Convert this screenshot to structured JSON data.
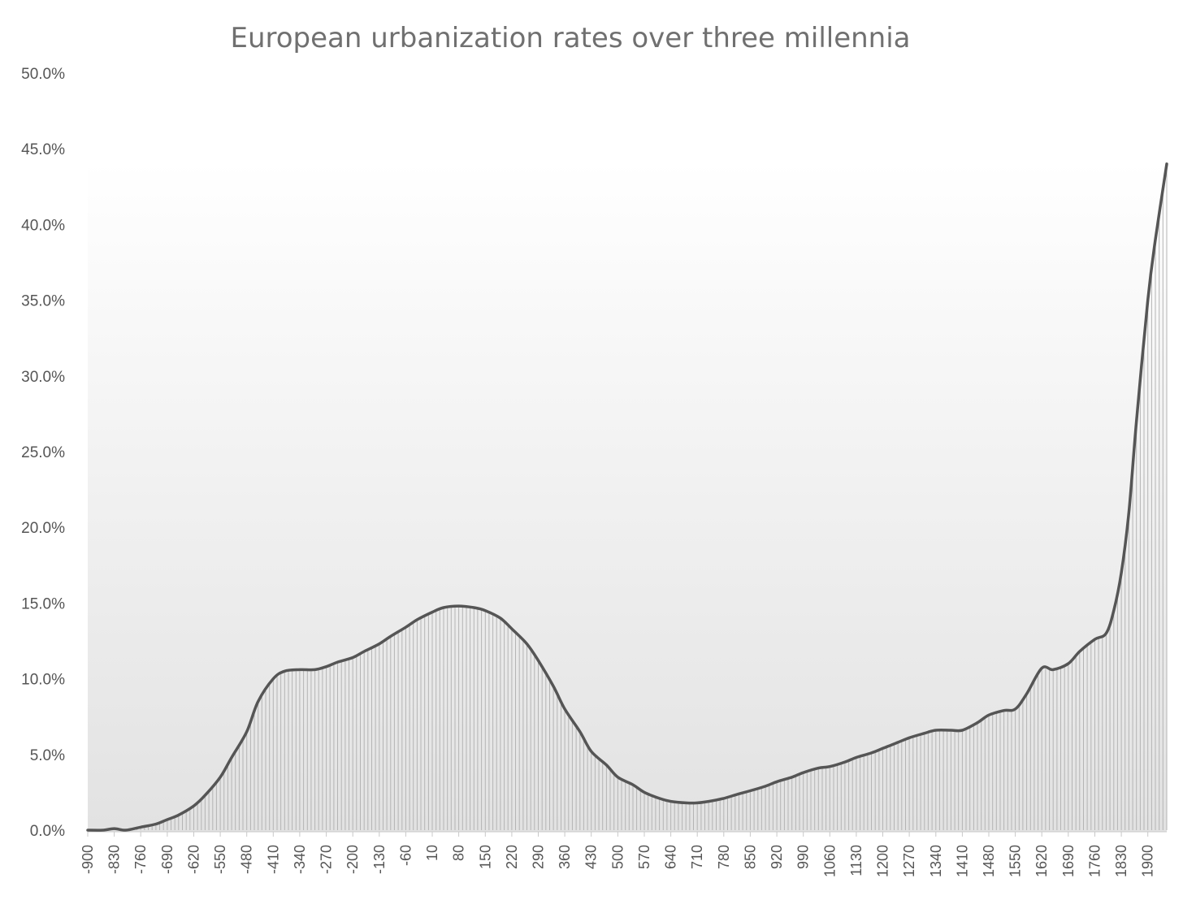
{
  "chart_data": {
    "type": "area",
    "title": "European urbanization rates over three millennia",
    "xlabel": "",
    "ylabel": "",
    "ylim": [
      0,
      50
    ],
    "y_tick_labels": [
      "0.0%",
      "5.0%",
      "10.0%",
      "15.0%",
      "20.0%",
      "25.0%",
      "30.0%",
      "35.0%",
      "40.0%",
      "45.0%",
      "50.0%"
    ],
    "x_tick_labels": [
      "-900",
      "-830",
      "-760",
      "-690",
      "-620",
      "-550",
      "-480",
      "-410",
      "-340",
      "-270",
      "-200",
      "-130",
      "-60",
      "10",
      "80",
      "150",
      "220",
      "290",
      "360",
      "430",
      "500",
      "570",
      "640",
      "710",
      "780",
      "850",
      "920",
      "990",
      "1060",
      "1130",
      "1200",
      "1270",
      "1340",
      "1410",
      "1480",
      "1550",
      "1620",
      "1690",
      "1760",
      "1830",
      "1900"
    ],
    "x_range": [
      -900,
      1950
    ],
    "grid": false,
    "legend": "none",
    "fill": "vertical gray hatching with gradient background",
    "line_color": "#555555",
    "series": [
      {
        "x": [
          -900,
          -860,
          -830,
          -800,
          -760,
          -720,
          -690,
          -660,
          -620,
          -590,
          -550,
          -520,
          -480,
          -450,
          -410,
          -380,
          -340,
          -300,
          -270,
          -240,
          -200,
          -170,
          -130,
          -100,
          -60,
          -30,
          10,
          40,
          80,
          120,
          150,
          190,
          220,
          260,
          290,
          330,
          360,
          400,
          430,
          470,
          500,
          540,
          570,
          610,
          640,
          680,
          710,
          740,
          780,
          820,
          850,
          890,
          920,
          960,
          990,
          1030,
          1060,
          1100,
          1130,
          1170,
          1200,
          1240,
          1270,
          1310,
          1340,
          1380,
          1410,
          1450,
          1480,
          1520,
          1550,
          1580,
          1620,
          1650,
          1690,
          1720,
          1760,
          1790,
          1810,
          1830,
          1850,
          1870,
          1900,
          1920,
          1950
        ],
        "values": [
          0.0,
          0.0,
          0.1,
          0.0,
          0.2,
          0.4,
          0.7,
          1.0,
          1.6,
          2.3,
          3.5,
          4.8,
          6.5,
          8.5,
          10.0,
          10.5,
          10.6,
          10.6,
          10.8,
          11.1,
          11.4,
          11.8,
          12.3,
          12.8,
          13.4,
          13.9,
          14.4,
          14.7,
          14.8,
          14.7,
          14.5,
          14.0,
          13.3,
          12.3,
          11.2,
          9.5,
          8.0,
          6.5,
          5.2,
          4.3,
          3.5,
          3.0,
          2.5,
          2.1,
          1.9,
          1.8,
          1.8,
          1.9,
          2.1,
          2.4,
          2.6,
          2.9,
          3.2,
          3.5,
          3.8,
          4.1,
          4.2,
          4.5,
          4.8,
          5.1,
          5.4,
          5.8,
          6.1,
          6.4,
          6.6,
          6.6,
          6.6,
          7.1,
          7.6,
          7.9,
          8.0,
          9.0,
          10.7,
          10.6,
          11.0,
          11.8,
          12.6,
          13.0,
          14.5,
          17.0,
          21.0,
          27.0,
          35.0,
          39.0,
          44.0
        ]
      }
    ]
  }
}
